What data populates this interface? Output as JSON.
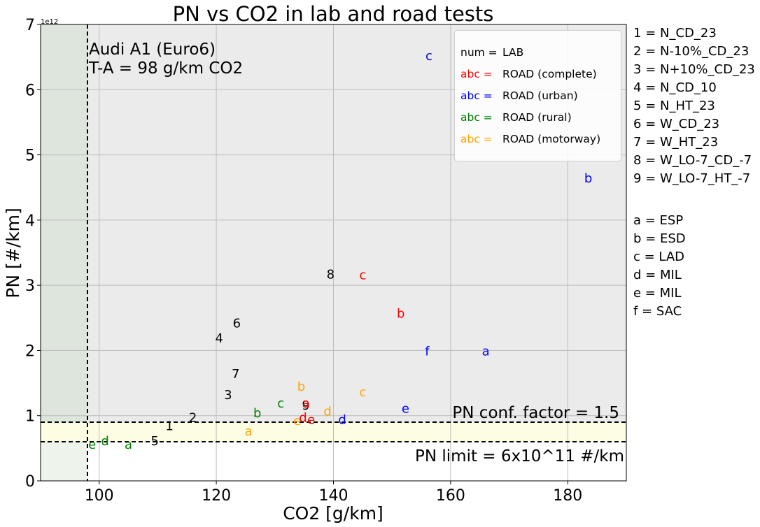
{
  "chart_data": {
    "type": "scatter",
    "title": "PN vs CO2 in lab and road tests",
    "xlabel": "CO2 [g/km]",
    "ylabel": "PN [#/km]",
    "y_scale_label": "1e12",
    "xlim": [
      90,
      190
    ],
    "ylim": [
      0,
      7
    ],
    "x_ticks": [
      100,
      120,
      140,
      160,
      180
    ],
    "y_ticks": [
      0,
      1,
      2,
      3,
      4,
      5,
      6,
      7
    ],
    "grid": true,
    "vehicle_label": "Audi A1 (Euro6)",
    "ta_label": "T-A = 98 g/km CO2",
    "ta_line_x": 98,
    "pn_limit_label": "PN limit = 6x10^11 #/km",
    "pn_limit_y": 0.6,
    "conf_factor_label": "PN conf. factor = 1.5",
    "conf_factor_y": 0.9,
    "colors": {
      "lab": "#000000",
      "complete": "#ff0000",
      "urban": "#0000ff",
      "rural": "#008000",
      "motorway": "#ffa500",
      "plot_bg": "#ebebeb",
      "grid": "#bdbdbd",
      "ta_region": "#dde5dc",
      "ta_region_low": "#eef4ec",
      "conf_band": "#fdfde3"
    },
    "legend": {
      "position": "top-right",
      "entries": [
        {
          "key": "num =",
          "label": "LAB",
          "series": "lab"
        },
        {
          "key": "abc =",
          "label": "ROAD (complete)",
          "series": "complete"
        },
        {
          "key": "abc =",
          "label": "ROAD (urban)",
          "series": "urban"
        },
        {
          "key": "abc =",
          "label": "ROAD (rural)",
          "series": "rural"
        },
        {
          "key": "abc =",
          "label": "ROAD (motorway)",
          "series": "motorway"
        }
      ]
    },
    "series": [
      {
        "key": "lab",
        "points": [
          {
            "label": "1",
            "x": 112,
            "y": 0.85
          },
          {
            "label": "2",
            "x": 116,
            "y": 0.98
          },
          {
            "label": "3",
            "x": 122,
            "y": 1.33
          },
          {
            "label": "4",
            "x": 120.5,
            "y": 2.2
          },
          {
            "label": "5",
            "x": 109.5,
            "y": 0.62
          },
          {
            "label": "6",
            "x": 123.5,
            "y": 2.43
          },
          {
            "label": "7",
            "x": 123.3,
            "y": 1.65
          },
          {
            "label": "8",
            "x": 139.5,
            "y": 3.18
          },
          {
            "label": "9",
            "x": 135.3,
            "y": 1.17
          }
        ]
      },
      {
        "key": "complete",
        "points": [
          {
            "label": "a",
            "x": 135.3,
            "y": 1.2
          },
          {
            "label": "b",
            "x": 151.5,
            "y": 2.58
          },
          {
            "label": "c",
            "x": 145,
            "y": 3.17
          },
          {
            "label": "d",
            "x": 134.8,
            "y": 0.98
          },
          {
            "label": "e",
            "x": 136.2,
            "y": 0.95
          }
        ]
      },
      {
        "key": "urban",
        "points": [
          {
            "label": "a",
            "x": 166,
            "y": 2.0
          },
          {
            "label": "b",
            "x": 183.5,
            "y": 4.65
          },
          {
            "label": "c",
            "x": 156.3,
            "y": 6.53
          },
          {
            "label": "d",
            "x": 141.5,
            "y": 0.95
          },
          {
            "label": "e",
            "x": 152.3,
            "y": 1.12
          },
          {
            "label": "f",
            "x": 156,
            "y": 2.0
          }
        ]
      },
      {
        "key": "rural",
        "points": [
          {
            "label": "a",
            "x": 105,
            "y": 0.57
          },
          {
            "label": "b",
            "x": 127,
            "y": 1.05
          },
          {
            "label": "c",
            "x": 131,
            "y": 1.2
          },
          {
            "label": "d",
            "x": 101,
            "y": 0.62
          },
          {
            "label": "e",
            "x": 98.8,
            "y": 0.57
          }
        ]
      },
      {
        "key": "motorway",
        "points": [
          {
            "label": "a",
            "x": 125.5,
            "y": 0.77
          },
          {
            "label": "b",
            "x": 134.5,
            "y": 1.46
          },
          {
            "label": "c",
            "x": 145,
            "y": 1.37
          },
          {
            "label": "d",
            "x": 139,
            "y": 1.08
          },
          {
            "label": "e",
            "x": 133.8,
            "y": 0.93
          }
        ]
      }
    ]
  },
  "side_legend": {
    "test_codes": [
      "1 = N_CD_23",
      "2 = N-10%_CD_23",
      "3 = N+10%_CD_23",
      "4 = N_CD_10",
      "5 = N_HT_23",
      "6 = W_CD_23",
      "7 = W_HT_23",
      "8 = W_LO-7_CD_-7",
      "9 = W_LO-7_HT_-7"
    ],
    "route_codes": [
      "a = ESP",
      "b = ESD",
      "c = LAD",
      "d = MIL",
      "e = MIL",
      "f = SAC"
    ]
  }
}
